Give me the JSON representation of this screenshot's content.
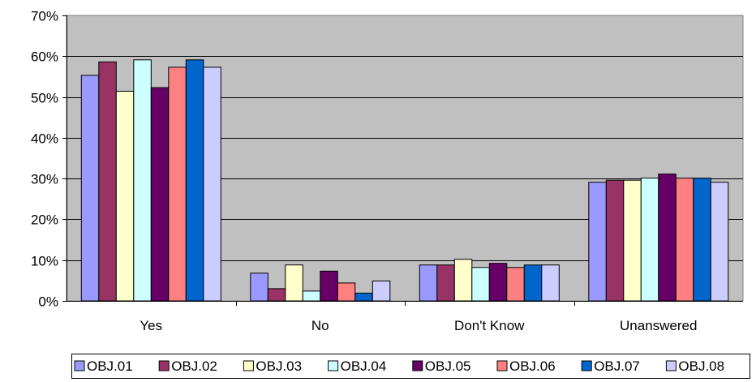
{
  "chart_data": {
    "type": "bar",
    "categories": [
      "Yes",
      "No",
      "Don't Know",
      "Unanswered"
    ],
    "y_ticks": [
      "0%",
      "10%",
      "20%",
      "30%",
      "40%",
      "50%",
      "60%",
      "70%"
    ],
    "ylim": [
      0,
      70
    ],
    "y_unit": "%",
    "grid": true,
    "legend_position": "bottom",
    "plot_background": "#C0C0C0",
    "series": [
      {
        "name": "OBJ.01",
        "color": "#9999FF",
        "values": [
          55.3,
          6.8,
          8.8,
          29.1
        ]
      },
      {
        "name": "OBJ.02",
        "color": "#993366",
        "values": [
          58.6,
          3.0,
          8.8,
          29.6
        ]
      },
      {
        "name": "OBJ.03",
        "color": "#FFFFCC",
        "values": [
          51.4,
          8.8,
          10.2,
          29.6
        ]
      },
      {
        "name": "OBJ.04",
        "color": "#CCFFFF",
        "values": [
          59.1,
          2.4,
          8.2,
          30.1
        ]
      },
      {
        "name": "OBJ.05",
        "color": "#660066",
        "values": [
          52.3,
          7.3,
          9.2,
          31.1
        ]
      },
      {
        "name": "OBJ.06",
        "color": "#FF8080",
        "values": [
          57.3,
          4.4,
          8.2,
          30.1
        ]
      },
      {
        "name": "OBJ.07",
        "color": "#0066CC",
        "values": [
          59.1,
          1.9,
          8.8,
          30.1
        ]
      },
      {
        "name": "OBJ.08",
        "color": "#CCCCFF",
        "values": [
          57.3,
          4.9,
          8.8,
          29.1
        ]
      }
    ]
  }
}
